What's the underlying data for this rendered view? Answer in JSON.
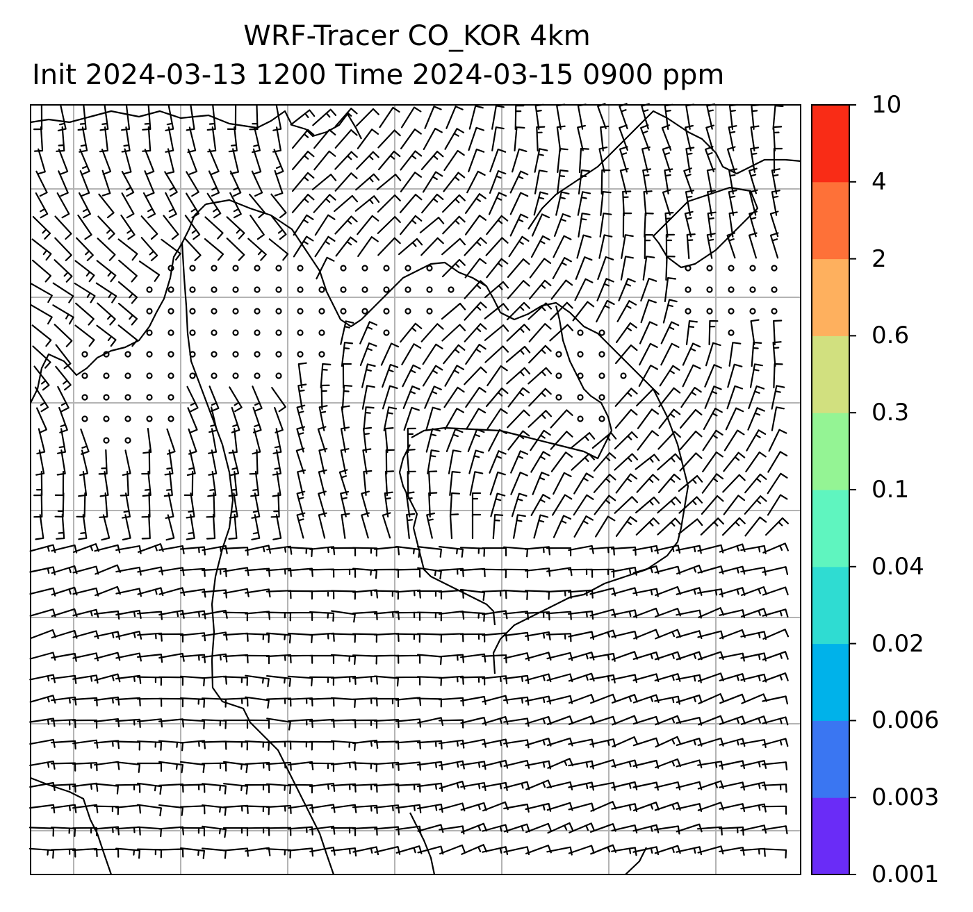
{
  "title": {
    "line1": "WRF-Tracer CO_KOR 4km",
    "line2": "Init 2024-03-13 1200 Time 2024-03-15 0900 ppm"
  },
  "colorbar": {
    "levels": [
      "0.001",
      "0.003",
      "0.006",
      "0.02",
      "0.04",
      "0.1",
      "0.3",
      "0.6",
      "2",
      "4",
      "10"
    ],
    "colors": [
      "#6a2cf7",
      "#3a76f2",
      "#00b2ea",
      "#2fdcd2",
      "#5ff5bf",
      "#94f494",
      "#d1e07f",
      "#feb05e",
      "#fe7138",
      "#f92c16"
    ]
  },
  "map": {
    "gridlines": true,
    "grid_color": "#b3b3b3",
    "coastline_color": "#000000",
    "barb_color": "#000000",
    "fill": "none"
  }
}
